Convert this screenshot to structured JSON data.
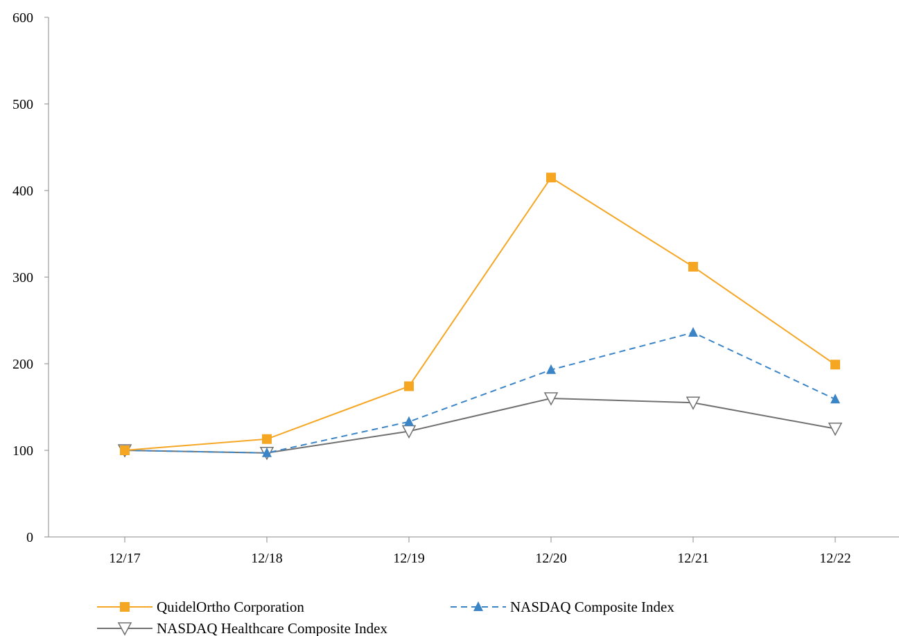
{
  "chart_data": {
    "type": "line",
    "categories": [
      "12/17",
      "12/18",
      "12/19",
      "12/20",
      "12/21",
      "12/22"
    ],
    "ylim": [
      0,
      600
    ],
    "yticks": [
      0,
      100,
      200,
      300,
      400,
      500,
      600
    ],
    "grid": false,
    "legend_position": "bottom",
    "series": [
      {
        "name": "QuidelOrtho Corporation",
        "values": [
          100,
          113,
          174,
          415,
          312,
          199
        ],
        "color": "#F5A623",
        "marker": "square",
        "dash": "solid"
      },
      {
        "name": "NASDAQ Composite Index",
        "values": [
          100,
          97,
          133,
          193,
          236,
          159
        ],
        "color": "#3B84C6",
        "marker": "triangle-up",
        "dash": "dashed"
      },
      {
        "name": "NASDAQ Healthcare Composite Index",
        "values": [
          100,
          97,
          122,
          160,
          155,
          125
        ],
        "color": "#707070",
        "marker": "triangle-down-open",
        "dash": "solid"
      }
    ]
  }
}
